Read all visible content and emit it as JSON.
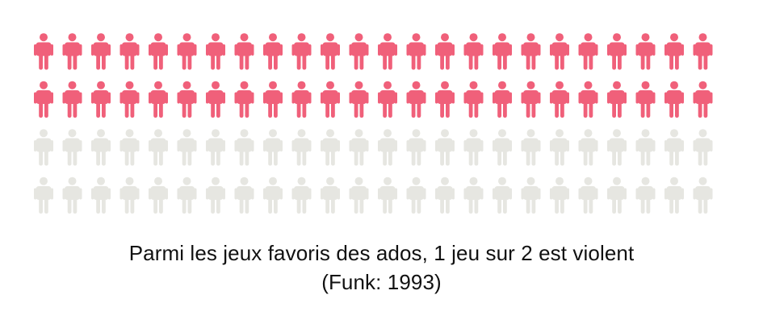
{
  "chart_data": {
    "type": "pictogram",
    "icon": "person-icon",
    "rows": 4,
    "columns": 24,
    "total_icons": 96,
    "highlighted_icons": 48,
    "highlighted_fraction": 0.5,
    "colors": {
      "highlighted": "#f0607a",
      "base": "#e6e6e1"
    }
  },
  "caption": {
    "line1": "Parmi les jeux favoris des ados, 1 jeu sur 2 est violent",
    "line2": "(Funk: 1993)"
  }
}
